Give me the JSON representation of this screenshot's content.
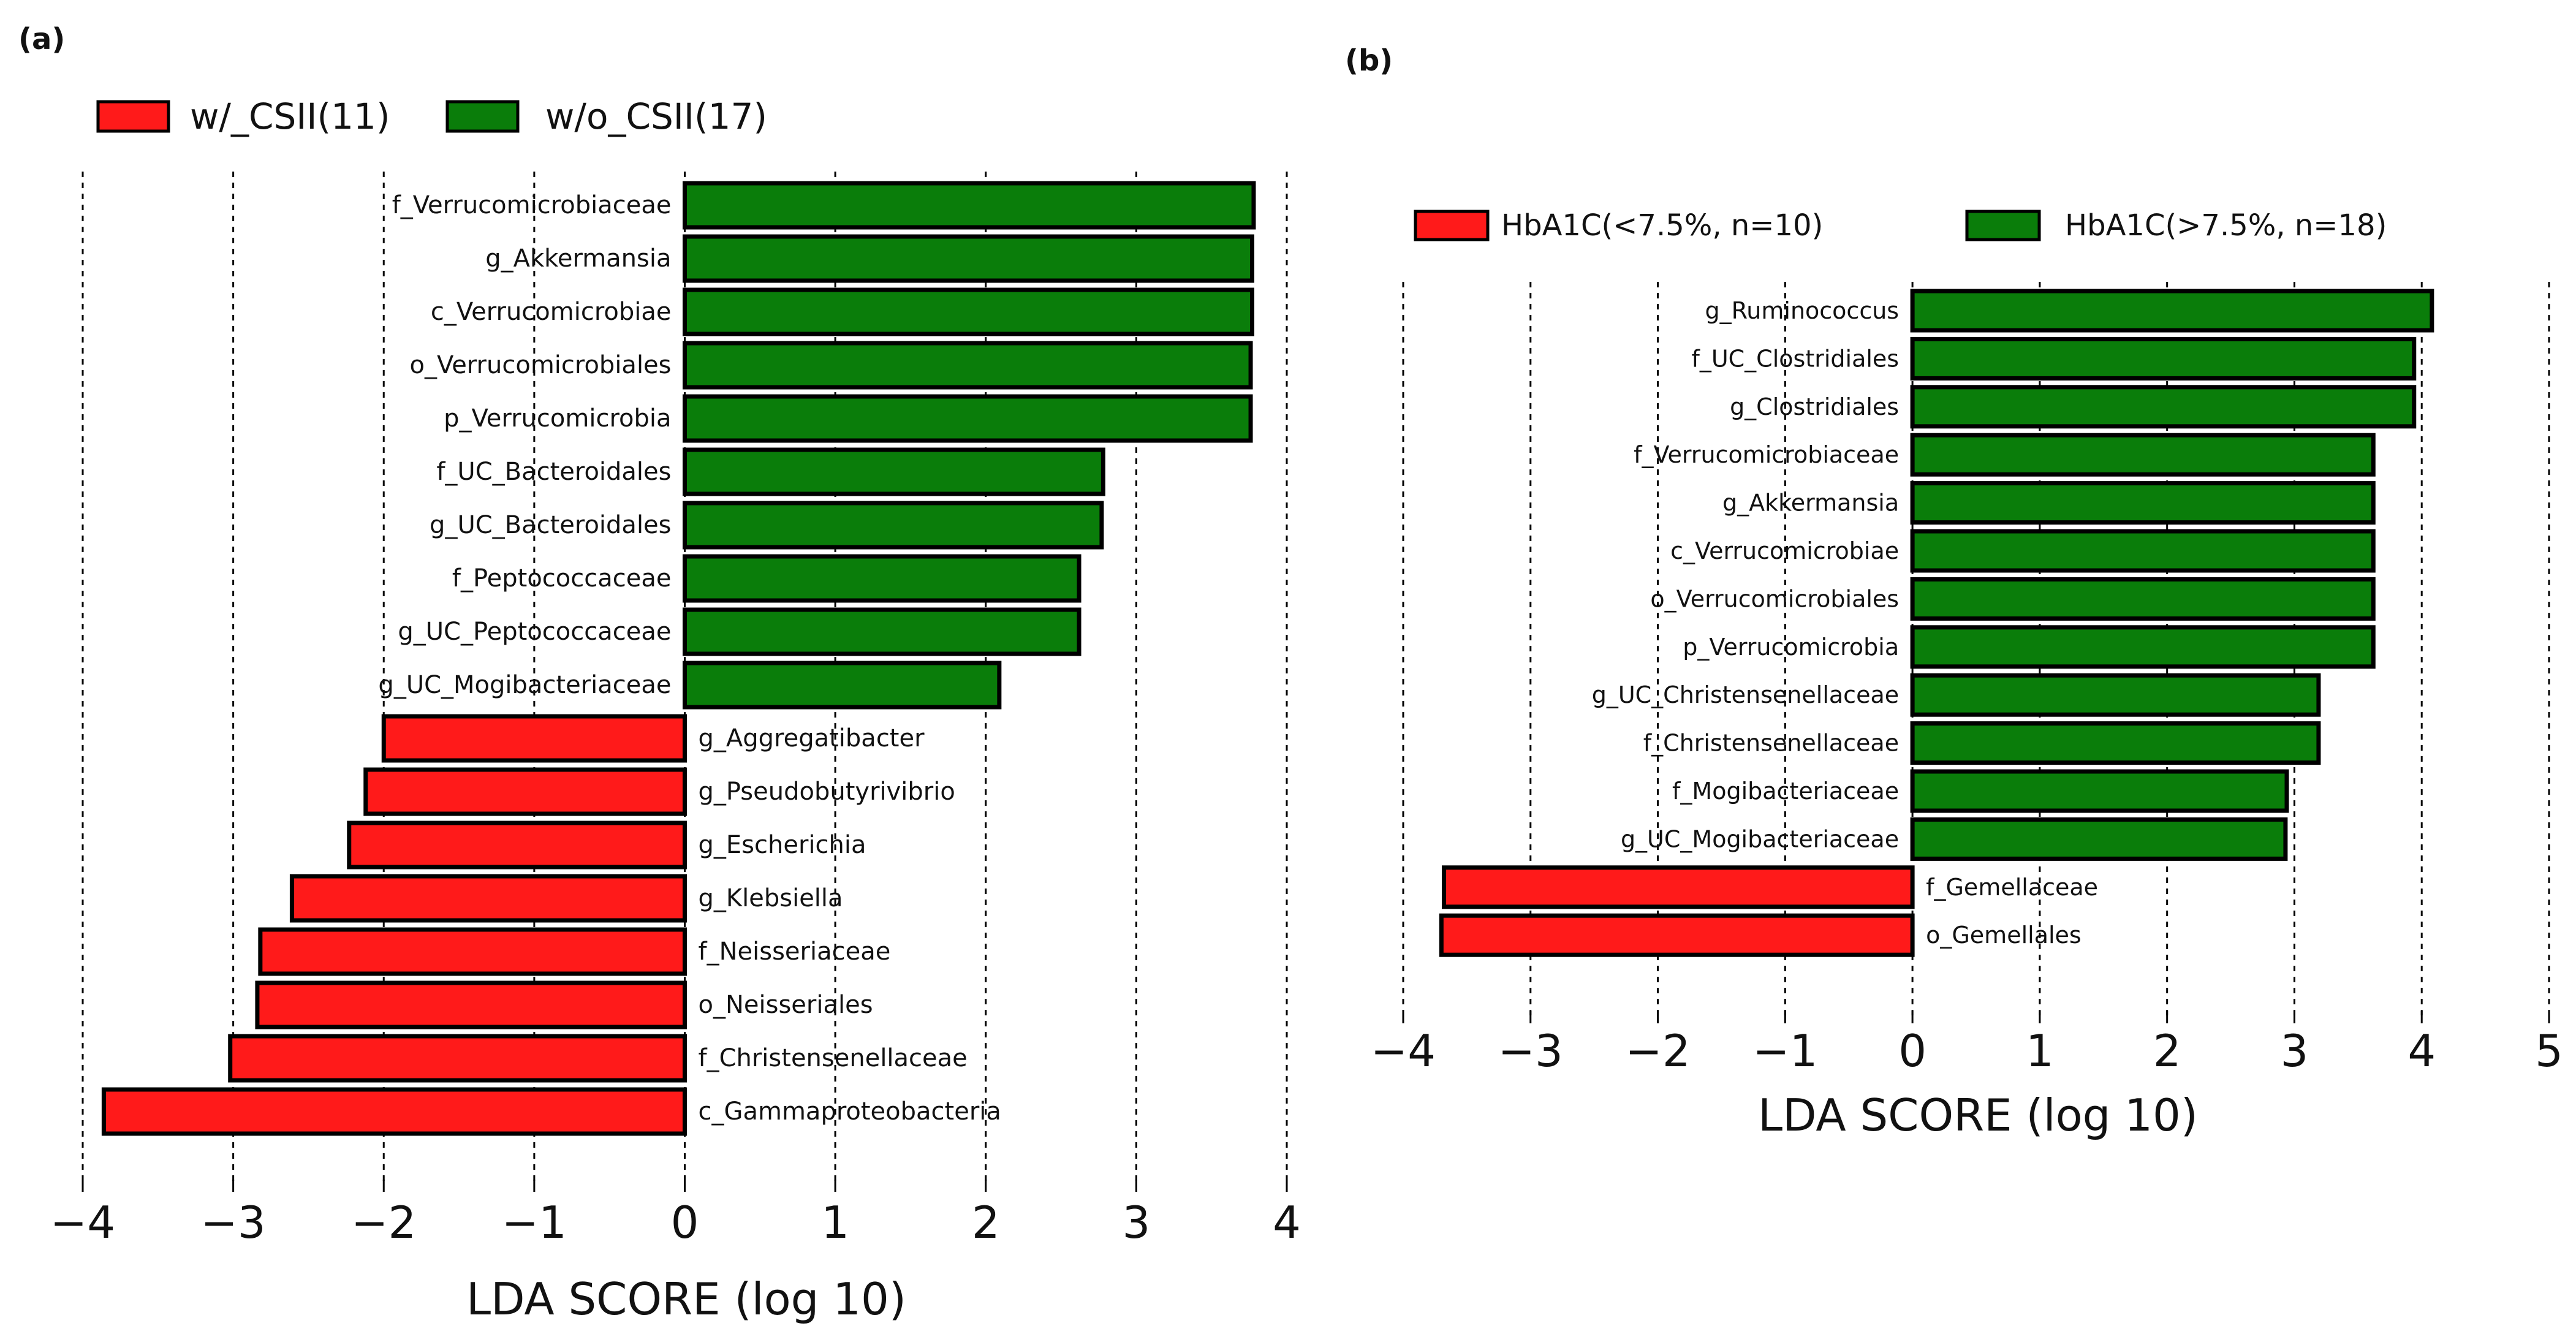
{
  "chart_data": [
    {
      "type": "bar",
      "orientation": "horizontal",
      "panel_label": "(a)",
      "xlabel": "LDA SCORE (log 10)",
      "xlim": [
        -4,
        4
      ],
      "xticks": [
        -4,
        -3,
        -2,
        -1,
        0,
        1,
        2,
        3,
        4
      ],
      "xtick_labels": [
        "−4",
        "−3",
        "−2",
        "−1",
        "0",
        "1",
        "2",
        "3",
        "4"
      ],
      "grid": "vertical dashed",
      "legend_position": "top-left",
      "legend": [
        {
          "name": "w/_CSII(11)",
          "color": "#ff1a1a"
        },
        {
          "name": "w/o_CSII(17)",
          "color": "#0a7d0a"
        }
      ],
      "bars": [
        {
          "label": "f_Verrucomicrobiaceae",
          "value": 3.78,
          "group": 1
        },
        {
          "label": "g_Akkermansia",
          "value": 3.77,
          "group": 1
        },
        {
          "label": "c_Verrucomicrobiae",
          "value": 3.77,
          "group": 1
        },
        {
          "label": "o_Verrucomicrobiales",
          "value": 3.76,
          "group": 1
        },
        {
          "label": "p_Verrucomicrobia",
          "value": 3.76,
          "group": 1
        },
        {
          "label": "f_UC_Bacteroidales",
          "value": 2.78,
          "group": 1
        },
        {
          "label": "g_UC_Bacteroidales",
          "value": 2.77,
          "group": 1
        },
        {
          "label": "f_Peptococcaceae",
          "value": 2.62,
          "group": 1
        },
        {
          "label": "g_UC_Peptococcaceae",
          "value": 2.62,
          "group": 1
        },
        {
          "label": "g_UC_Mogibacteriaceae",
          "value": 2.09,
          "group": 1
        },
        {
          "label": "g_Aggregatibacter",
          "value": -2.0,
          "group": 0
        },
        {
          "label": "g_Pseudobutyrivibrio",
          "value": -2.12,
          "group": 0
        },
        {
          "label": "g_Escherichia",
          "value": -2.23,
          "group": 0
        },
        {
          "label": "g_Klebsiella",
          "value": -2.61,
          "group": 0
        },
        {
          "label": "f_Neisseriaceae",
          "value": -2.82,
          "group": 0
        },
        {
          "label": "o_Neisseriales",
          "value": -2.84,
          "group": 0
        },
        {
          "label": "f_Christensenellaceae",
          "value": -3.02,
          "group": 0
        },
        {
          "label": "c_Gammaproteobacteria",
          "value": -3.86,
          "group": 0
        }
      ]
    },
    {
      "type": "bar",
      "orientation": "horizontal",
      "panel_label": "(b)",
      "xlabel": "LDA SCORE (log 10)",
      "xlim": [
        -4,
        5
      ],
      "xticks": [
        -4,
        -3,
        -2,
        -1,
        0,
        1,
        2,
        3,
        4,
        5
      ],
      "xtick_labels": [
        "−4",
        "−3",
        "−2",
        "−1",
        "0",
        "1",
        "2",
        "3",
        "4",
        "5"
      ],
      "grid": "vertical dashed",
      "legend_position": "top-left",
      "legend": [
        {
          "name": "HbA1C(<7.5%, n=10)",
          "color": "#ff1a1a"
        },
        {
          "name": "HbA1C(>7.5%, n=18)",
          "color": "#0a7d0a"
        }
      ],
      "bars": [
        {
          "label": "g_Ruminococcus",
          "value": 4.08,
          "group": 1
        },
        {
          "label": "f_UC_Clostridiales",
          "value": 3.94,
          "group": 1
        },
        {
          "label": "g_Clostridiales",
          "value": 3.94,
          "group": 1
        },
        {
          "label": "f_Verrucomicrobiaceae",
          "value": 3.62,
          "group": 1
        },
        {
          "label": "g_Akkermansia",
          "value": 3.62,
          "group": 1
        },
        {
          "label": "c_Verrucomicrobiae",
          "value": 3.62,
          "group": 1
        },
        {
          "label": "o_Verrucomicrobiales",
          "value": 3.62,
          "group": 1
        },
        {
          "label": "p_Verrucomicrobia",
          "value": 3.62,
          "group": 1
        },
        {
          "label": "g_UC_Christensenellaceae",
          "value": 3.19,
          "group": 1
        },
        {
          "label": "f_Christensenellaceae",
          "value": 3.19,
          "group": 1
        },
        {
          "label": "f_Mogibacteriaceae",
          "value": 2.94,
          "group": 1
        },
        {
          "label": "g_UC_Mogibacteriaceae",
          "value": 2.93,
          "group": 1
        },
        {
          "label": "f_Gemellaceae",
          "value": -3.68,
          "group": 0
        },
        {
          "label": "o_Gemellales",
          "value": -3.7,
          "group": 0
        }
      ]
    }
  ]
}
